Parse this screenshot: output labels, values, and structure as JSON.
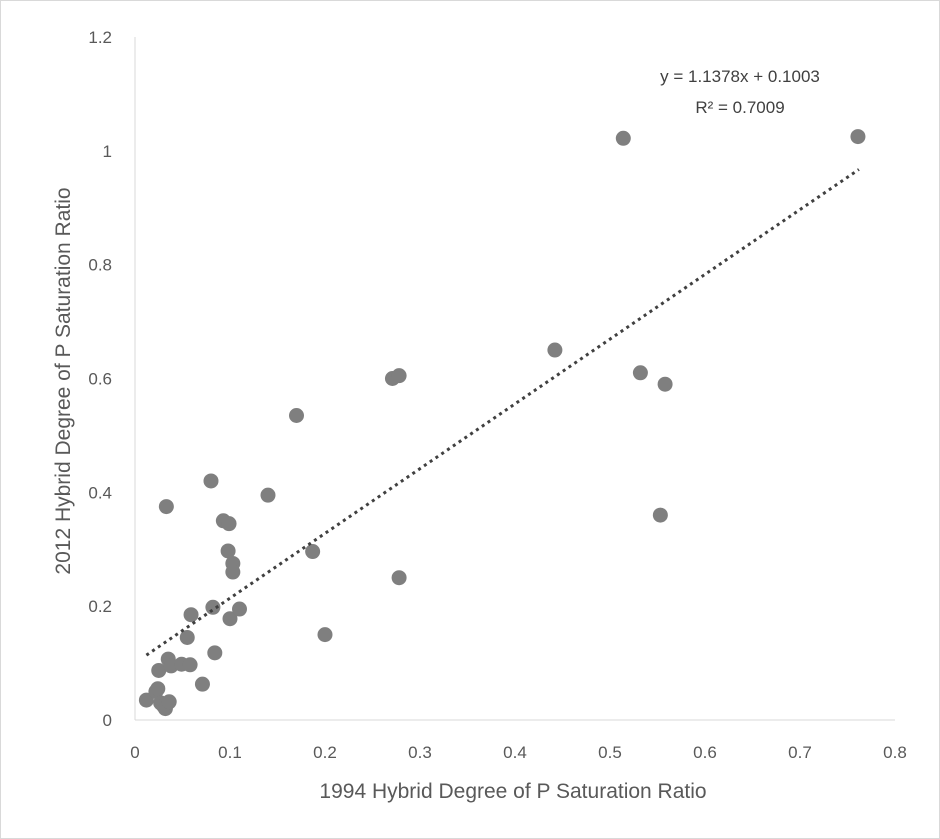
{
  "chart_data": {
    "type": "scatter",
    "title": "",
    "xlabel": "1994 Hybrid Degree of P Saturation Ratio",
    "ylabel": "2012 Hybrid Degree of P Saturation Ratio",
    "xlim": [
      0,
      0.8
    ],
    "ylim": [
      0,
      1.2
    ],
    "x_ticks": [
      "0",
      "0.1",
      "0.2",
      "0.3",
      "0.4",
      "0.5",
      "0.6",
      "0.7",
      "0.8"
    ],
    "y_ticks": [
      "0",
      "0.2",
      "0.4",
      "0.6",
      "0.8",
      "1",
      "1.2"
    ],
    "grid": false,
    "legend": "none",
    "marker_color": "#7f7f7f",
    "trendline": {
      "type": "linear",
      "style": "dotted",
      "color": "#404040",
      "slope": 1.1378,
      "intercept": 0.1003,
      "x_range": [
        0.012,
        0.762
      ],
      "equation": "y = 1.1378x + 0.1003",
      "r_squared": "R² = 0.7009"
    },
    "points": [
      {
        "x": 0.012,
        "y": 0.035
      },
      {
        "x": 0.022,
        "y": 0.05
      },
      {
        "x": 0.024,
        "y": 0.055
      },
      {
        "x": 0.025,
        "y": 0.087
      },
      {
        "x": 0.027,
        "y": 0.03
      },
      {
        "x": 0.03,
        "y": 0.025
      },
      {
        "x": 0.032,
        "y": 0.02
      },
      {
        "x": 0.033,
        "y": 0.375
      },
      {
        "x": 0.035,
        "y": 0.107
      },
      {
        "x": 0.036,
        "y": 0.032
      },
      {
        "x": 0.038,
        "y": 0.095
      },
      {
        "x": 0.049,
        "y": 0.098
      },
      {
        "x": 0.055,
        "y": 0.145
      },
      {
        "x": 0.058,
        "y": 0.097
      },
      {
        "x": 0.059,
        "y": 0.185
      },
      {
        "x": 0.071,
        "y": 0.063
      },
      {
        "x": 0.08,
        "y": 0.42
      },
      {
        "x": 0.082,
        "y": 0.198
      },
      {
        "x": 0.084,
        "y": 0.118
      },
      {
        "x": 0.093,
        "y": 0.35
      },
      {
        "x": 0.098,
        "y": 0.297
      },
      {
        "x": 0.099,
        "y": 0.345
      },
      {
        "x": 0.1,
        "y": 0.178
      },
      {
        "x": 0.103,
        "y": 0.275
      },
      {
        "x": 0.103,
        "y": 0.26
      },
      {
        "x": 0.11,
        "y": 0.195
      },
      {
        "x": 0.14,
        "y": 0.395
      },
      {
        "x": 0.17,
        "y": 0.535
      },
      {
        "x": 0.187,
        "y": 0.296
      },
      {
        "x": 0.2,
        "y": 0.15
      },
      {
        "x": 0.271,
        "y": 0.6
      },
      {
        "x": 0.278,
        "y": 0.605
      },
      {
        "x": 0.278,
        "y": 0.25
      },
      {
        "x": 0.442,
        "y": 0.65
      },
      {
        "x": 0.514,
        "y": 1.022
      },
      {
        "x": 0.532,
        "y": 0.61
      },
      {
        "x": 0.553,
        "y": 0.36
      },
      {
        "x": 0.558,
        "y": 0.59
      },
      {
        "x": 0.761,
        "y": 1.025
      }
    ]
  }
}
